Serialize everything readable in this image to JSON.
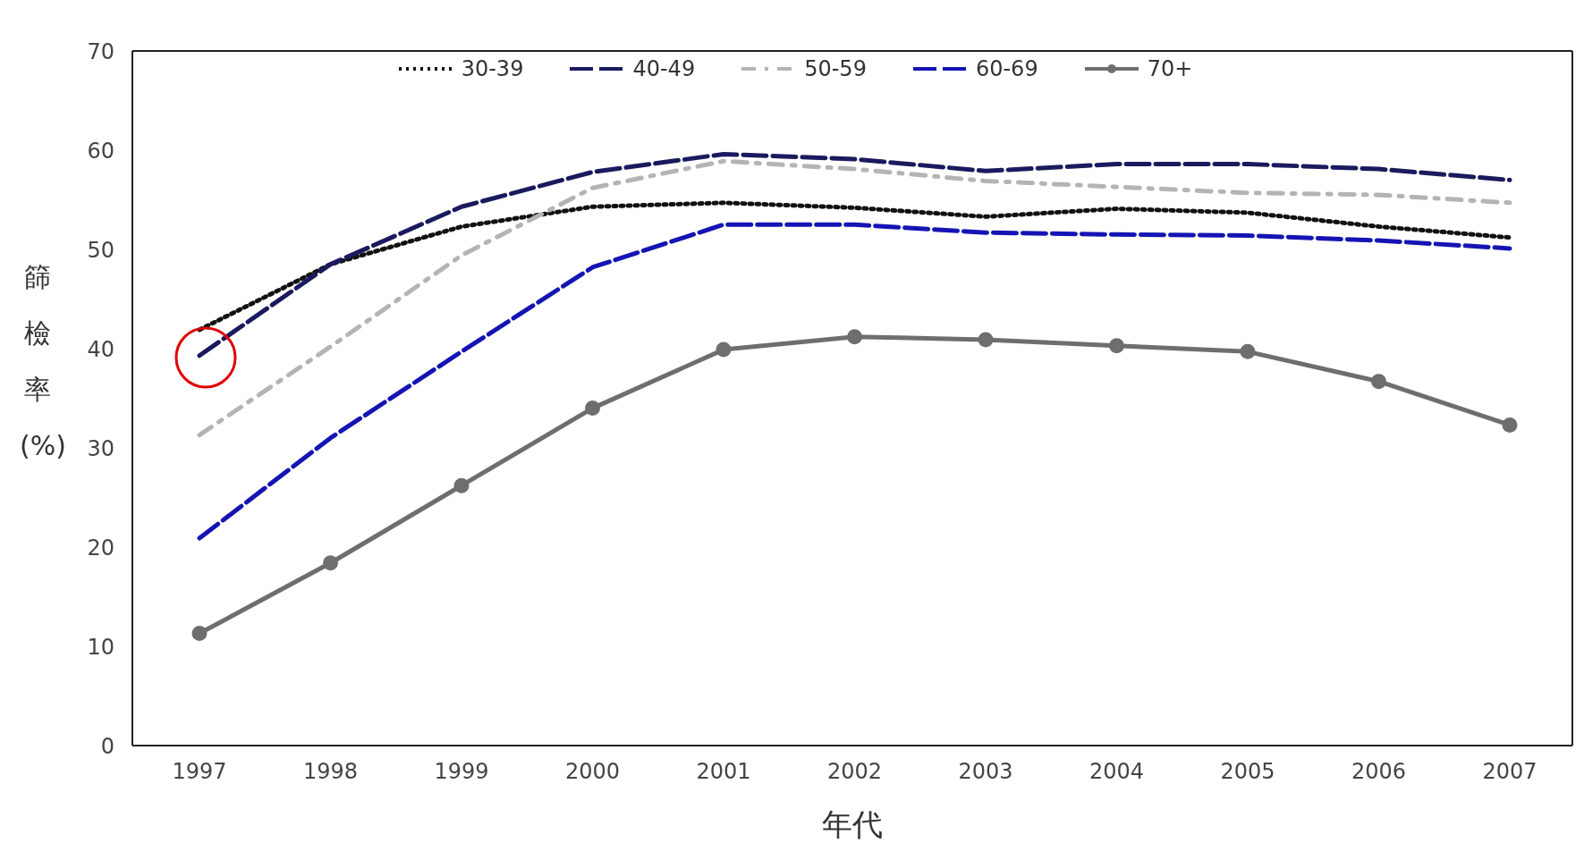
{
  "chart_data": {
    "type": "line",
    "xlabel": "年代",
    "ylabel": "篩檢率(%)",
    "categories": [
      "1997",
      "1998",
      "1999",
      "2000",
      "2001",
      "2002",
      "2003",
      "2004",
      "2005",
      "2006",
      "2007"
    ],
    "series": [
      {
        "name": "30-39",
        "color": "#111111",
        "line_style": "dotted",
        "marker": "none",
        "values": [
          41.9,
          48.5,
          52.3,
          54.3,
          54.7,
          54.2,
          53.3,
          54.1,
          53.7,
          52.3,
          51.2
        ]
      },
      {
        "name": "40-49",
        "color": "#1a1a5e",
        "line_style": "dashed",
        "marker": "none",
        "values": [
          39.3,
          48.5,
          54.3,
          57.8,
          59.6,
          59.1,
          57.9,
          58.6,
          58.6,
          58.1,
          57.0
        ]
      },
      {
        "name": "50-59",
        "color": "#b4b4b4",
        "line_style": "dashdot",
        "marker": "none",
        "values": [
          31.3,
          40.2,
          49.4,
          56.2,
          58.9,
          58.1,
          56.9,
          56.3,
          55.7,
          55.5,
          54.7
        ]
      },
      {
        "name": "60-69",
        "color": "#1414b4",
        "line_style": "dashed",
        "marker": "none",
        "values": [
          20.9,
          31.0,
          39.7,
          48.2,
          52.5,
          52.5,
          51.7,
          51.5,
          51.4,
          50.9,
          50.1
        ]
      },
      {
        "name": "70+",
        "color": "#6e6e6e",
        "line_style": "solid",
        "marker": "circle",
        "values": [
          11.3,
          18.4,
          26.2,
          34.0,
          39.9,
          41.2,
          40.9,
          40.3,
          39.7,
          36.7,
          32.3
        ]
      }
    ],
    "ylim": [
      0,
      70
    ],
    "yticks": [
      0,
      10,
      20,
      30,
      40,
      50,
      60,
      70
    ],
    "grid": false,
    "legend": "top"
  }
}
